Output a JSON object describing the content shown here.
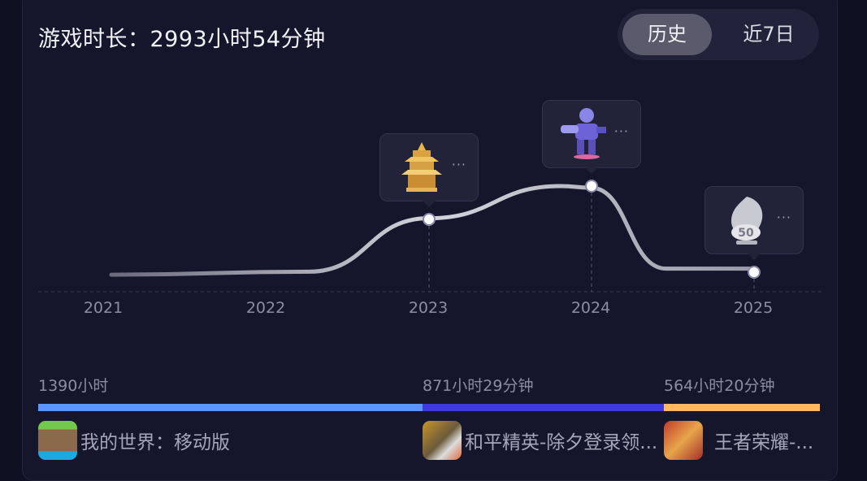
{
  "header": {
    "title": "游戏时长：2993小时54分钟",
    "tabs": [
      {
        "label": "历史",
        "active": true
      },
      {
        "label": "近7日",
        "active": false
      }
    ]
  },
  "chart_data": {
    "type": "line",
    "x": [
      "2021",
      "2022",
      "2023",
      "2024",
      "2025"
    ],
    "values_relative": [
      0.12,
      0.15,
      0.68,
      1.0,
      0.18
    ],
    "markers": [
      {
        "x": "2023",
        "icon": "golden-pagoda-trophy"
      },
      {
        "x": "2024",
        "icon": "purple-mech-trophy"
      },
      {
        "x": "2025",
        "icon": "silver-dragon-50-trophy"
      }
    ],
    "grid": false
  },
  "marker_more": "···",
  "games": [
    {
      "name": "我的世界：移动版",
      "time": "1390小时",
      "share": 0.4823,
      "color": "#5b96fb",
      "icon": "minecraft-icon"
    },
    {
      "name": "和平精英-除夕登录领...",
      "time": "871小时29分钟",
      "share": 0.3025,
      "color": "#3e3bd8",
      "icon": "peacekeeper-elite-icon"
    },
    {
      "name": "王者荣耀-...",
      "time": "564小时20分钟",
      "share": 0.1958,
      "color": "#ffb962",
      "icon": "honor-of-kings-icon"
    }
  ],
  "colors": {
    "background": "#0f1022",
    "card": "#15152c",
    "line": "#c8c8d0"
  }
}
